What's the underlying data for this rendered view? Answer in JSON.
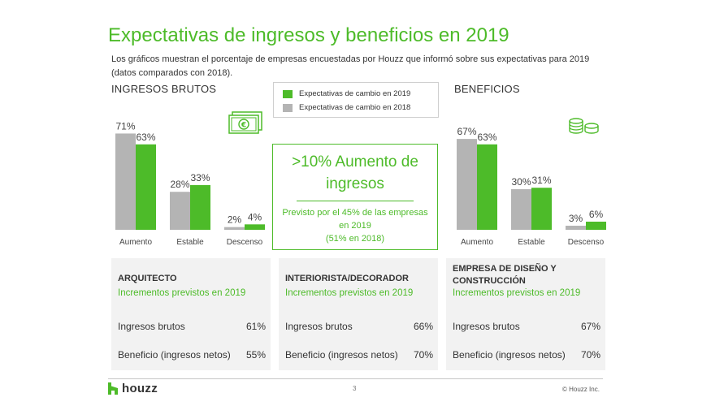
{
  "title": "Expectativas de ingresos y beneficios en 2019",
  "subtitle": "Los gráficos muestran el porcentaje de empresas encuestadas por Houzz que informó sobre sus expectativas para 2019 (datos comparados con 2018).",
  "colors": {
    "green": "#4dbb29",
    "gray": "#b4b4b4",
    "panel_bg": "#f2f2f2"
  },
  "legend": [
    {
      "label": "Expectativas de cambio en 2019",
      "color": "#4dbb29"
    },
    {
      "label": "Expectativas de cambio en 2018",
      "color": "#b4b4b4"
    }
  ],
  "chart_data": [
    {
      "type": "bar",
      "title": "INGRESOS BRUTOS",
      "icon": "money-euro-icon",
      "categories": [
        "Aumento",
        "Estable",
        "Descenso"
      ],
      "series": [
        {
          "name": "Expectativas de cambio en 2018",
          "values": [
            71,
            28,
            2
          ],
          "labels": [
            "71%",
            "28%",
            "2%"
          ],
          "color": "#b4b4b4"
        },
        {
          "name": "Expectativas de cambio en 2019",
          "values": [
            63,
            33,
            4
          ],
          "labels": [
            "63%",
            "33%",
            "4%"
          ],
          "color": "#4dbb29"
        }
      ],
      "ylim": [
        0,
        100
      ]
    },
    {
      "type": "bar",
      "title": "BENEFICIOS",
      "icon": "coins-icon",
      "categories": [
        "Aumento",
        "Estable",
        "Descenso"
      ],
      "series": [
        {
          "name": "Expectativas de cambio en 2018",
          "values": [
            67,
            30,
            3
          ],
          "labels": [
            "67%",
            "30%",
            "3%"
          ],
          "color": "#b4b4b4"
        },
        {
          "name": "Expectativas de cambio en 2019",
          "values": [
            63,
            31,
            6
          ],
          "labels": [
            "63%",
            "31%",
            "6%"
          ],
          "color": "#4dbb29"
        }
      ],
      "ylim": [
        0,
        100
      ]
    }
  ],
  "callout": {
    "headline": ">10% Aumento de ingresos",
    "body": "Previsto por el 45% de las empresas en 2019",
    "body_note": "(51% en 2018)"
  },
  "panels": [
    {
      "title": "ARQUITECTO",
      "subtitle": "Incrementos previstos en 2019",
      "rows": [
        {
          "label": "Ingresos brutos",
          "value": "61%"
        },
        {
          "label": "Beneficio (ingresos netos)",
          "value": "55%"
        }
      ]
    },
    {
      "title": "INTERIORISTA/DECORADOR",
      "subtitle": "Incrementos previstos en 2019",
      "rows": [
        {
          "label": "Ingresos brutos",
          "value": "66%"
        },
        {
          "label": "Beneficio (ingresos netos)",
          "value": "70%"
        }
      ]
    },
    {
      "title": "EMPRESA DE DISEÑO Y CONSTRUCCIÓN",
      "subtitle": "Incrementos previstos en 2019",
      "rows": [
        {
          "label": "Ingresos brutos",
          "value": "67%"
        },
        {
          "label": "Beneficio (ingresos netos)",
          "value": "70%"
        }
      ]
    }
  ],
  "footer": {
    "logo_text": "houzz",
    "page_number": "3",
    "copyright": "© Houzz Inc."
  }
}
